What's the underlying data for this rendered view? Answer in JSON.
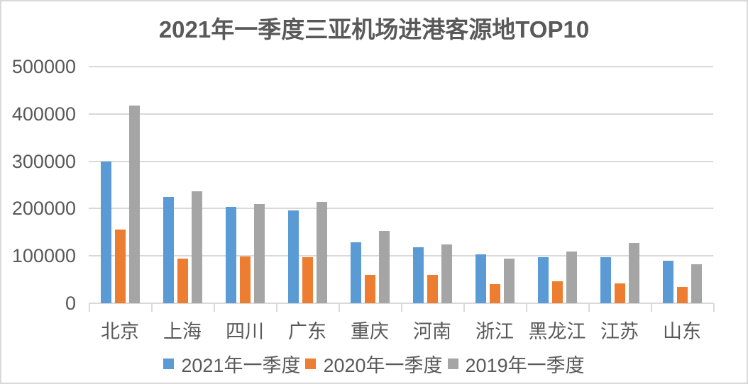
{
  "window": {
    "background_color": "#FFFFFF",
    "border_color": "#D9D9D9"
  },
  "chart_data": {
    "type": "bar",
    "title": "2021年一季度三亚机场进港客源地TOP10",
    "title_color": "#595959",
    "categories": [
      "北京",
      "上海",
      "四川",
      "广东",
      "重庆",
      "河南",
      "浙江",
      "黑龙江",
      "江苏",
      "山东"
    ],
    "series": [
      {
        "name": "2021年一季度",
        "color": "#5B9BD5",
        "values": [
          300000,
          225000,
          204000,
          196000,
          129000,
          118000,
          104000,
          98000,
          97000,
          90000
        ]
      },
      {
        "name": "2020年一季度",
        "color": "#ED7D31",
        "values": [
          155000,
          94000,
          99000,
          98000,
          60000,
          60000,
          41000,
          47000,
          42000,
          35000
        ]
      },
      {
        "name": "2019年一季度",
        "color": "#A5A5A5",
        "values": [
          417000,
          236000,
          209000,
          214000,
          152000,
          125000,
          94000,
          110000,
          128000,
          82000
        ]
      }
    ],
    "xlabel": "",
    "ylabel": "",
    "ylim": [
      0,
      500000
    ],
    "y_ticks": [
      0,
      100000,
      200000,
      300000,
      400000,
      500000
    ],
    "y_tick_labels": [
      "0",
      "100000",
      "200000",
      "300000",
      "400000",
      "500000"
    ],
    "grid": "horizontal",
    "gridline_color": "#D9D9D9",
    "axis_text_color": "#595959",
    "legend_position": "bottom"
  }
}
